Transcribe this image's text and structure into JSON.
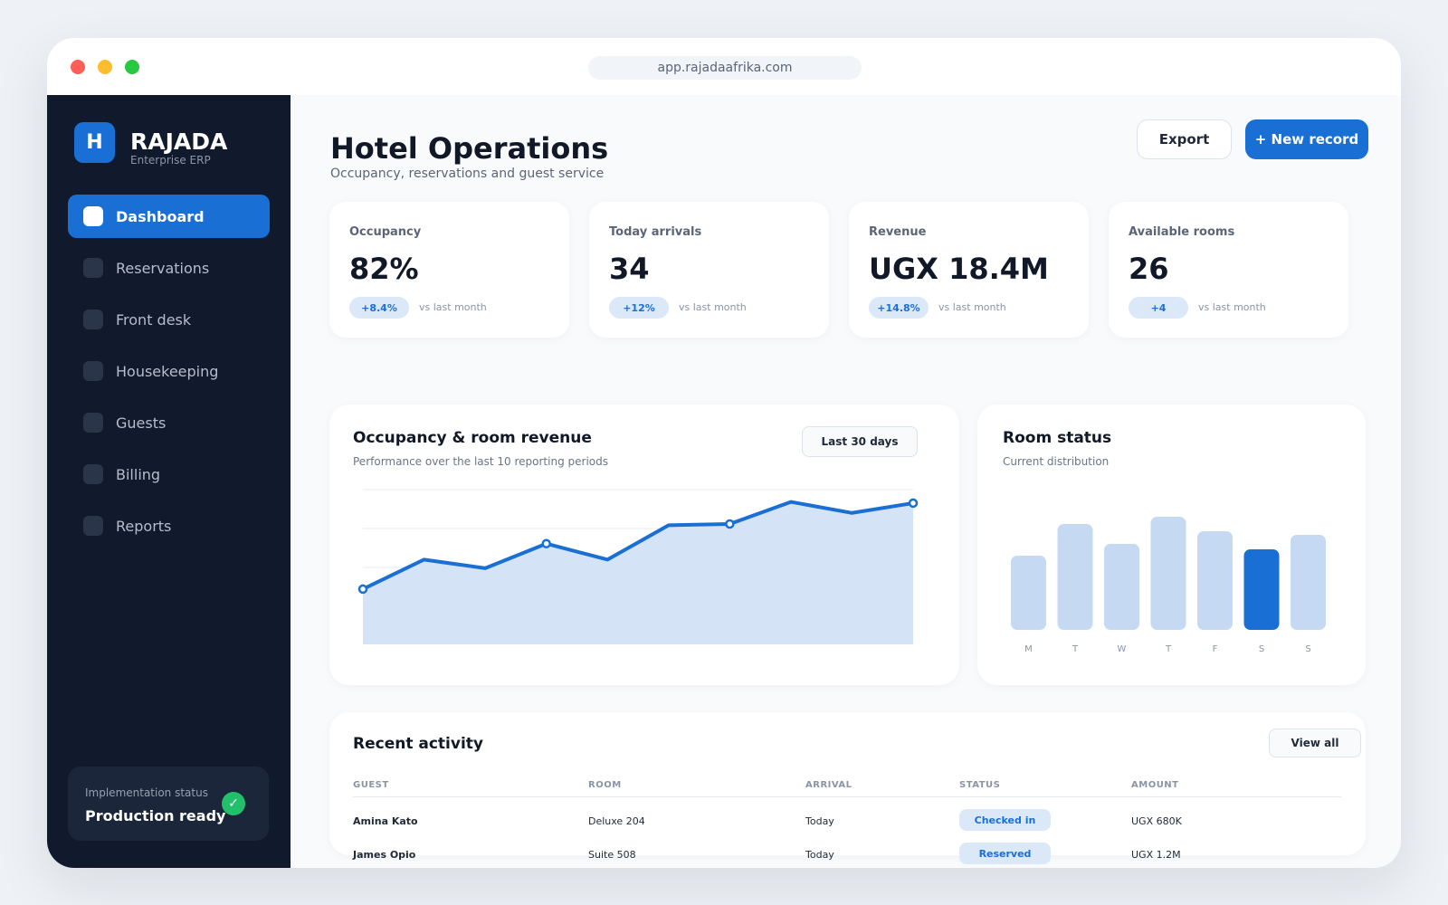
{
  "browser": {
    "url": "app.rajadaafrika.com"
  },
  "sidebar": {
    "logo_letter": "H",
    "brand": "RAJADA",
    "brand_sub": "Enterprise ERP",
    "items": [
      {
        "label": "Dashboard",
        "active": true
      },
      {
        "label": "Reservations"
      },
      {
        "label": "Front desk"
      },
      {
        "label": "Housekeeping"
      },
      {
        "label": "Guests"
      },
      {
        "label": "Billing"
      },
      {
        "label": "Reports"
      }
    ],
    "implementation": {
      "label": "Implementation status",
      "value": "Production ready",
      "check": "✓"
    }
  },
  "header": {
    "title": "Hotel Operations",
    "subtitle": "Occupancy, reservations and guest service",
    "export_label": "Export",
    "new_label": "+ New record"
  },
  "kpis": [
    {
      "label": "Occupancy",
      "value": "82%",
      "change": "+8.4%",
      "compare": "vs last month"
    },
    {
      "label": "Today arrivals",
      "value": "34",
      "change": "+12%",
      "compare": "vs last month"
    },
    {
      "label": "Revenue",
      "value": "UGX 18.4M",
      "change": "+14.8%",
      "compare": "vs last month"
    },
    {
      "label": "Available rooms",
      "value": "26",
      "change": "+4",
      "compare": "vs last month"
    }
  ],
  "occupancy_chart": {
    "title": "Occupancy & room revenue",
    "subtitle": "Performance over the last 10 reporting periods",
    "range_label": "Last 30 days"
  },
  "room_status": {
    "title": "Room status",
    "subtitle": "Current distribution"
  },
  "activity": {
    "title": "Recent activity",
    "view_all": "View all",
    "columns": [
      "GUEST",
      "ROOM",
      "ARRIVAL",
      "STATUS",
      "AMOUNT"
    ],
    "rows": [
      [
        "Amina Kato",
        "Deluxe 204",
        "Today",
        "Checked in",
        "UGX 680K"
      ],
      [
        "James Opio",
        "Suite 508",
        "Today",
        "Reserved",
        "UGX 1.2M"
      ]
    ]
  },
  "colors": {
    "accent": "#1a6fd4",
    "sidebar": "#111a2d",
    "area_fill": "#d4e4f6",
    "bar_light": "#c5daf2"
  },
  "chart_data": [
    {
      "type": "area",
      "x": [
        1,
        2,
        3,
        4,
        5,
        6,
        7,
        8,
        9,
        10
      ],
      "values": [
        19,
        43,
        36,
        56,
        43,
        71,
        72,
        90,
        81,
        89
      ],
      "markers": [
        1,
        4,
        7,
        10
      ],
      "ylim": [
        -26,
        100
      ],
      "grid": true
    },
    {
      "type": "bar",
      "categories": [
        "M",
        "T",
        "W",
        "T",
        "F",
        "S",
        "S"
      ],
      "values": [
        82,
        117,
        95,
        125,
        109,
        89,
        105
      ],
      "highlight_index": 5,
      "ylim": [
        0,
        130
      ]
    }
  ]
}
